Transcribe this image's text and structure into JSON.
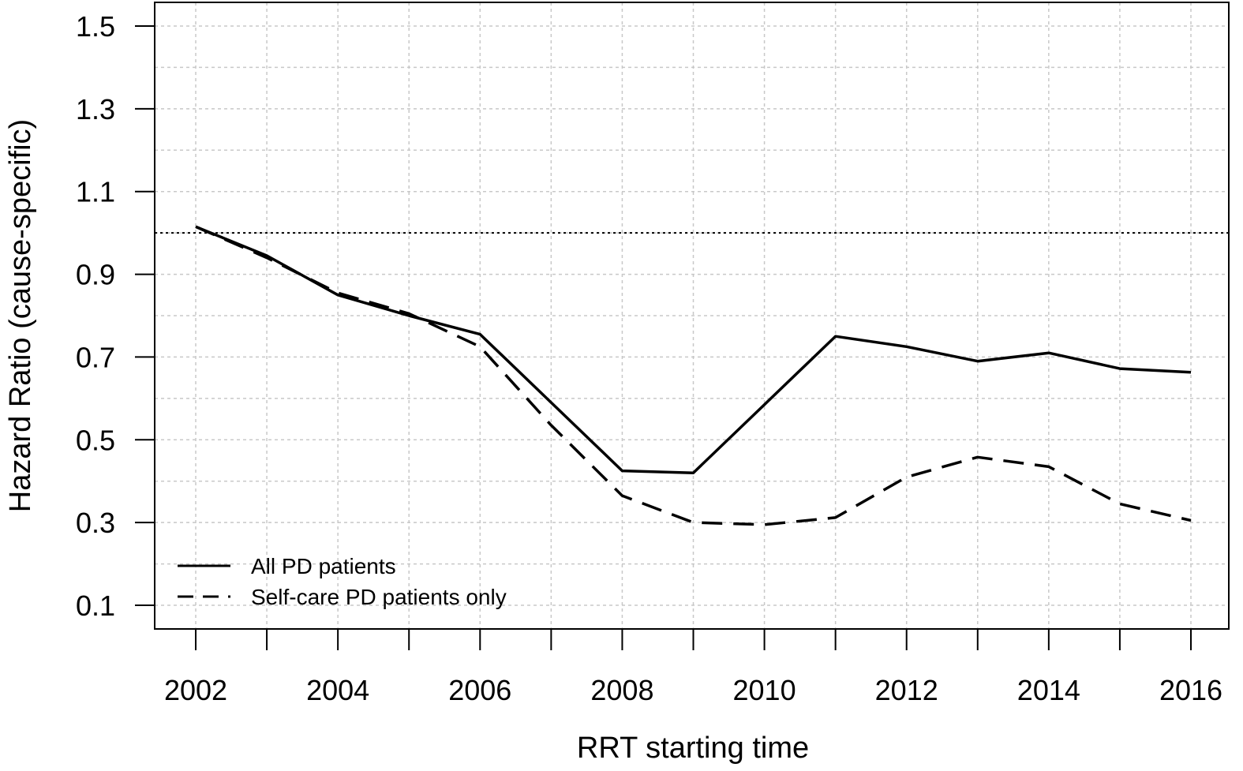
{
  "chart_data": {
    "type": "line",
    "xlabel": "RRT starting time",
    "ylabel": "Hazard Ratio (cause-specific)",
    "xlim": [
      2002,
      2016
    ],
    "ylim": [
      0.1,
      1.5
    ],
    "x_ticks": [
      2002,
      2004,
      2006,
      2008,
      2010,
      2012,
      2014,
      2016
    ],
    "x_tick_labels": [
      "2002",
      "2004",
      "2006",
      "2008",
      "2010",
      "2012",
      "2014",
      "2016"
    ],
    "x_minor_ticks": [
      2003,
      2005,
      2007,
      2009,
      2011,
      2013,
      2015
    ],
    "y_ticks": [
      0.1,
      0.3,
      0.5,
      0.7,
      0.9,
      1.1,
      1.3,
      1.5
    ],
    "y_tick_labels": [
      "0.1",
      "0.3",
      "0.5",
      "0.7",
      "0.9",
      "1.1",
      "1.3",
      "1.5"
    ],
    "y_minor_gridlines": [
      0.2,
      0.4,
      0.6,
      0.8,
      1.0,
      1.2,
      1.4
    ],
    "grid": true,
    "reference_line": 1.0,
    "legend_position": "bottom-left",
    "series": [
      {
        "name": "All PD patients",
        "style": "solid",
        "x": [
          2002,
          2003,
          2004,
          2005,
          2006,
          2007,
          2008,
          2009,
          2010,
          2011,
          2012,
          2013,
          2014,
          2015,
          2016
        ],
        "values": [
          1.015,
          0.945,
          0.85,
          0.8,
          0.755,
          0.59,
          0.425,
          0.42,
          0.585,
          0.75,
          0.725,
          0.69,
          0.71,
          0.672,
          0.663
        ]
      },
      {
        "name": "Self-care PD patients only",
        "style": "dashed",
        "x": [
          2002,
          2003,
          2004,
          2005,
          2006,
          2007,
          2008,
          2009,
          2010,
          2011,
          2012,
          2013,
          2014,
          2015,
          2016
        ],
        "values": [
          1.015,
          0.94,
          0.855,
          0.805,
          0.725,
          0.535,
          0.365,
          0.3,
          0.295,
          0.312,
          0.41,
          0.458,
          0.435,
          0.345,
          0.305
        ]
      }
    ],
    "colors": {
      "line": "#000000",
      "grid": "#c8c8c8",
      "background": "#ffffff"
    }
  }
}
